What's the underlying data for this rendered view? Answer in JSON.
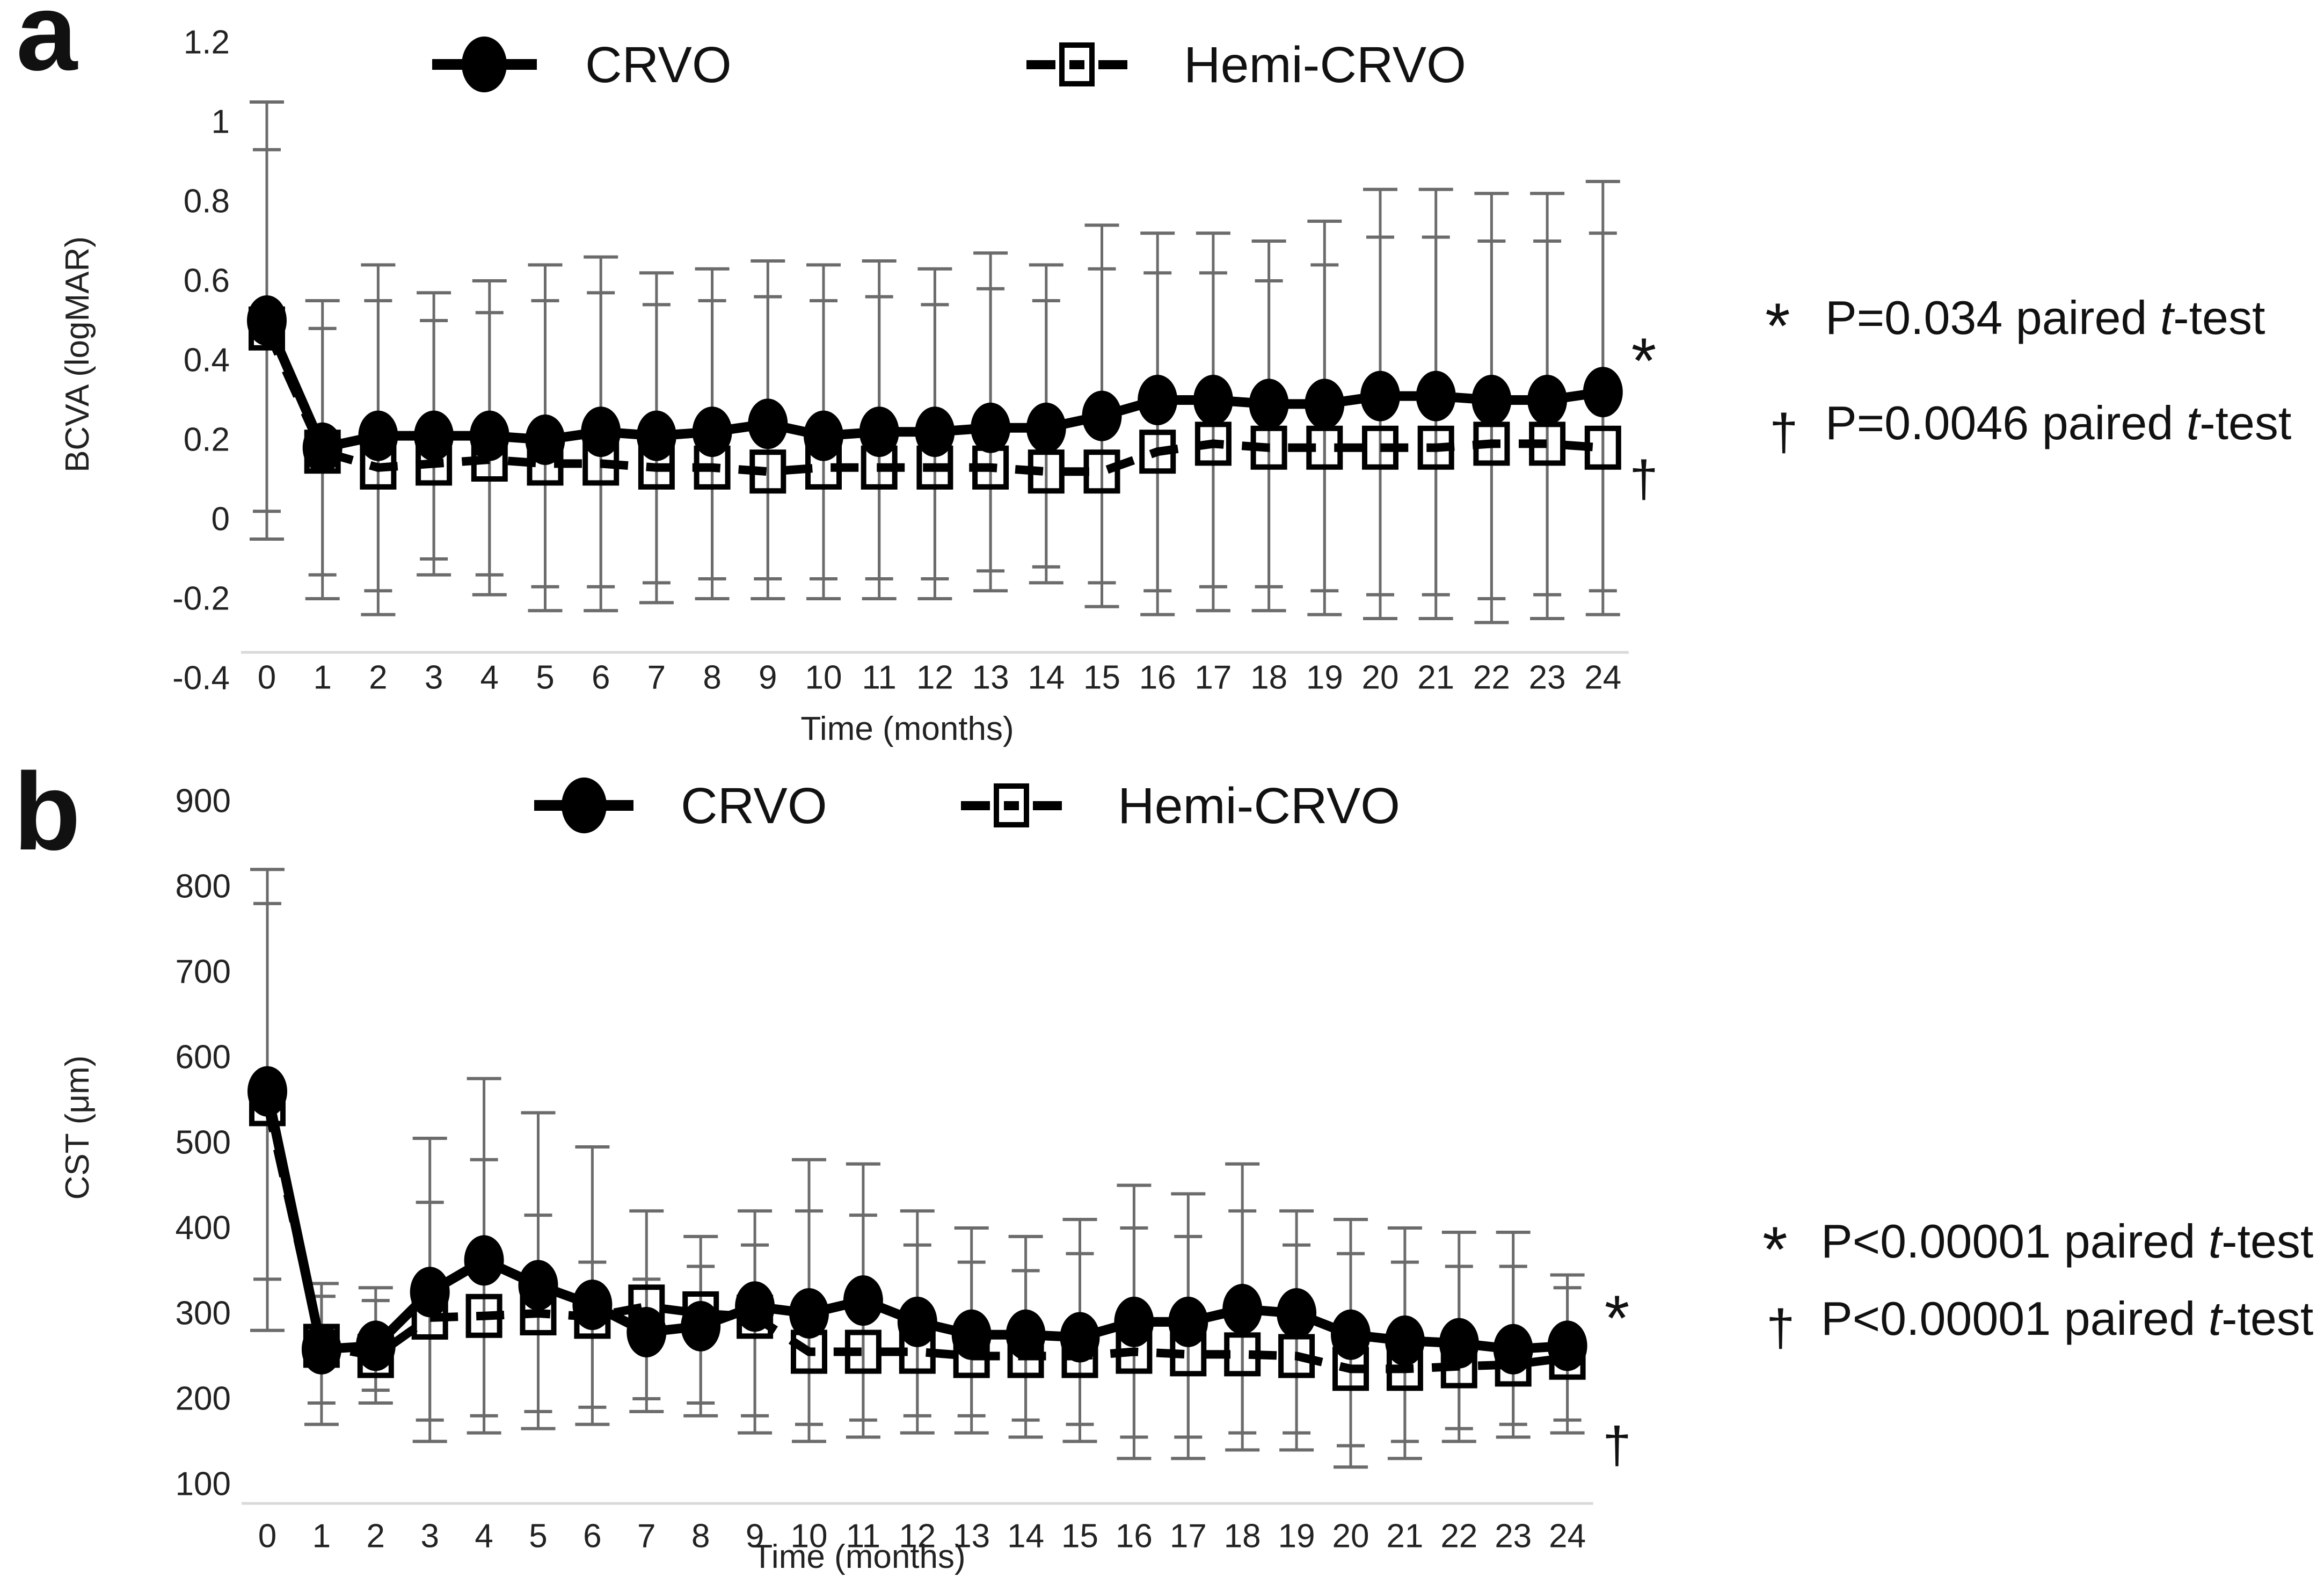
{
  "panels": {
    "a": {
      "letter": "a",
      "ylabel": "BCVA (logMAR)",
      "xlabel": "Time (months)",
      "legend": [
        {
          "label": "CRVO"
        },
        {
          "label": "Hemi-CRVO"
        }
      ],
      "annotations": [
        {
          "symbol": "*",
          "prefix": "P=0.034 paired ",
          "italic_word": "t",
          "suffix": "-test"
        },
        {
          "symbol": "†",
          "prefix": "P=0.0046 paired  ",
          "italic_word": "t",
          "suffix": "-test"
        }
      ]
    },
    "b": {
      "letter": "b",
      "ylabel": "CST (μm)",
      "xlabel": "Time (months)",
      "legend": [
        {
          "label": "CRVO"
        },
        {
          "label": "Hemi-CRVO"
        }
      ],
      "annotations": [
        {
          "symbol": "*",
          "prefix": "P<0.00001 paired ",
          "italic_word": "t",
          "suffix": "-test"
        },
        {
          "symbol": "†",
          "prefix": "P<0.00001 paired  ",
          "italic_word": "t",
          "suffix": "-test"
        }
      ]
    }
  },
  "chart_data": [
    {
      "type": "line",
      "panel": "a",
      "title": "",
      "xlabel": "Time (months)",
      "ylabel": "BCVA (logMAR)",
      "categories": [
        "0",
        "1",
        "2",
        "3",
        "4",
        "5",
        "6",
        "7",
        "8",
        "9",
        "10",
        "11",
        "12",
        "13",
        "14",
        "15",
        "16",
        "17",
        "18",
        "19",
        "20",
        "21",
        "22",
        "23",
        "24"
      ],
      "ylim": [
        -0.4,
        1.2
      ],
      "ytick_labels": [
        "1.2",
        "1",
        "0.8",
        "0.6",
        "0.4",
        "0.2",
        "0",
        "-0.2",
        "-0.4"
      ],
      "ytick_values": [
        1.2,
        1,
        0.8,
        0.6,
        0.4,
        0.2,
        0,
        -0.2,
        -0.4
      ],
      "grid": false,
      "legend_position": "top",
      "series": [
        {
          "name": "CRVO",
          "marker": "filled-circle",
          "line": "solid",
          "values": [
            0.5,
            0.18,
            0.21,
            0.21,
            0.21,
            0.2,
            0.22,
            0.21,
            0.22,
            0.24,
            0.21,
            0.22,
            0.22,
            0.23,
            0.23,
            0.26,
            0.3,
            0.3,
            0.29,
            0.29,
            0.31,
            0.31,
            0.3,
            0.3,
            0.32
          ],
          "err_up": [
            1.05,
            0.55,
            0.64,
            0.57,
            0.6,
            0.64,
            0.66,
            0.62,
            0.63,
            0.65,
            0.64,
            0.65,
            0.63,
            0.67,
            0.64,
            0.74,
            0.72,
            0.72,
            0.7,
            0.75,
            0.83,
            0.83,
            0.82,
            0.82,
            0.85
          ],
          "err_down": [
            -0.05,
            -0.2,
            -0.24,
            -0.14,
            -0.19,
            -0.23,
            -0.23,
            -0.21,
            -0.2,
            -0.2,
            -0.2,
            -0.2,
            -0.2,
            -0.18,
            -0.16,
            -0.22,
            -0.24,
            -0.23,
            -0.23,
            -0.24,
            -0.25,
            -0.25,
            -0.26,
            -0.25,
            -0.24
          ]
        },
        {
          "name": "Hemi-CRVO",
          "marker": "open-square",
          "line": "dashed",
          "values": [
            0.48,
            0.17,
            0.13,
            0.14,
            0.15,
            0.14,
            0.14,
            0.13,
            0.13,
            0.12,
            0.13,
            0.13,
            0.13,
            0.13,
            0.12,
            0.12,
            0.17,
            0.19,
            0.18,
            0.18,
            0.18,
            0.18,
            0.19,
            0.19,
            0.18
          ],
          "err_up": [
            0.93,
            0.48,
            0.55,
            0.5,
            0.52,
            0.55,
            0.57,
            0.54,
            0.55,
            0.56,
            0.55,
            0.56,
            0.54,
            0.58,
            0.55,
            0.63,
            0.62,
            0.62,
            0.6,
            0.64,
            0.71,
            0.71,
            0.7,
            0.7,
            0.72
          ],
          "err_down": [
            0.02,
            -0.14,
            -0.18,
            -0.1,
            -0.14,
            -0.17,
            -0.17,
            -0.16,
            -0.15,
            -0.15,
            -0.15,
            -0.15,
            -0.15,
            -0.13,
            -0.12,
            -0.16,
            -0.18,
            -0.17,
            -0.17,
            -0.18,
            -0.19,
            -0.19,
            -0.2,
            -0.19,
            -0.18
          ]
        }
      ],
      "significance": [
        {
          "symbol": "*",
          "value": 0.4
        },
        {
          "symbol": "†",
          "value": 0.1
        }
      ]
    },
    {
      "type": "line",
      "panel": "b",
      "title": "",
      "xlabel": "Time (months)",
      "ylabel": "CST (μm)",
      "categories": [
        "0",
        "1",
        "2",
        "3",
        "4",
        "5",
        "6",
        "7",
        "8",
        "9",
        "10",
        "11",
        "12",
        "13",
        "14",
        "15",
        "16",
        "17",
        "18",
        "19",
        "20",
        "21",
        "22",
        "23",
        "24"
      ],
      "ylim": [
        100,
        900
      ],
      "ytick_labels": [
        "900",
        "800",
        "700",
        "600",
        "500",
        "400",
        "300",
        "200",
        "100"
      ],
      "ytick_values": [
        900,
        800,
        700,
        600,
        500,
        400,
        300,
        200,
        100
      ],
      "grid": false,
      "legend_position": "top",
      "series": [
        {
          "name": "CRVO",
          "marker": "filled-circle",
          "line": "solid",
          "values": [
            560,
            258,
            262,
            325,
            362,
            333,
            310,
            278,
            285,
            308,
            300,
            315,
            290,
            275,
            275,
            272,
            290,
            290,
            305,
            300,
            275,
            268,
            265,
            258,
            262
          ],
          "err_up": [
            820,
            335,
            330,
            505,
            575,
            535,
            495,
            420,
            390,
            420,
            480,
            475,
            420,
            400,
            390,
            410,
            450,
            440,
            475,
            420,
            410,
            400,
            395,
            395,
            345
          ],
          "err_down": [
            280,
            170,
            195,
            150,
            160,
            165,
            170,
            185,
            180,
            160,
            150,
            155,
            160,
            160,
            155,
            150,
            130,
            130,
            140,
            140,
            120,
            130,
            150,
            155,
            160
          ]
        },
        {
          "name": "Hemi-CRVO",
          "marker": "open-square",
          "line": "dashed",
          "values": [
            545,
            262,
            250,
            295,
            297,
            300,
            296,
            308,
            300,
            296,
            255,
            255,
            255,
            250,
            250,
            250,
            255,
            252,
            252,
            250,
            235,
            235,
            238,
            240,
            248
          ],
          "err_up": [
            780,
            320,
            315,
            430,
            480,
            415,
            360,
            340,
            355,
            380,
            420,
            415,
            380,
            360,
            350,
            370,
            400,
            390,
            420,
            380,
            370,
            360,
            355,
            355,
            330
          ],
          "err_down": [
            340,
            195,
            210,
            175,
            180,
            185,
            190,
            200,
            195,
            180,
            170,
            175,
            180,
            180,
            175,
            170,
            155,
            155,
            160,
            160,
            145,
            150,
            165,
            170,
            175
          ]
        }
      ],
      "significance": [
        {
          "symbol": "*",
          "value": 295
        },
        {
          "symbol": "†",
          "value": 145
        }
      ]
    }
  ]
}
